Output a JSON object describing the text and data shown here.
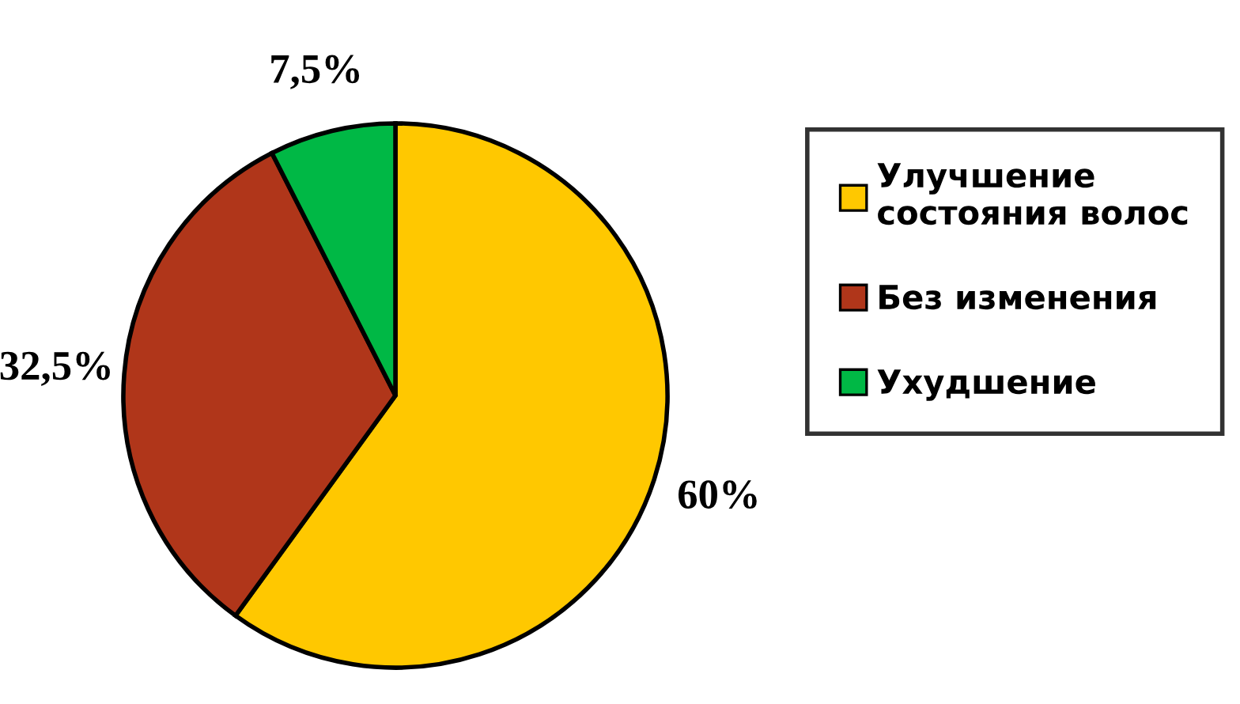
{
  "chart_data": {
    "type": "pie",
    "categories": [
      "Улучшение\nсостояния волос",
      "Без изменения",
      "Ухудшение"
    ],
    "values": [
      60,
      32.5,
      7.5
    ],
    "value_labels": [
      "60%",
      "32,5%",
      "7,5%"
    ],
    "colors": [
      "#ffc800",
      "#b0361a",
      "#00b845"
    ],
    "legend": "right"
  }
}
